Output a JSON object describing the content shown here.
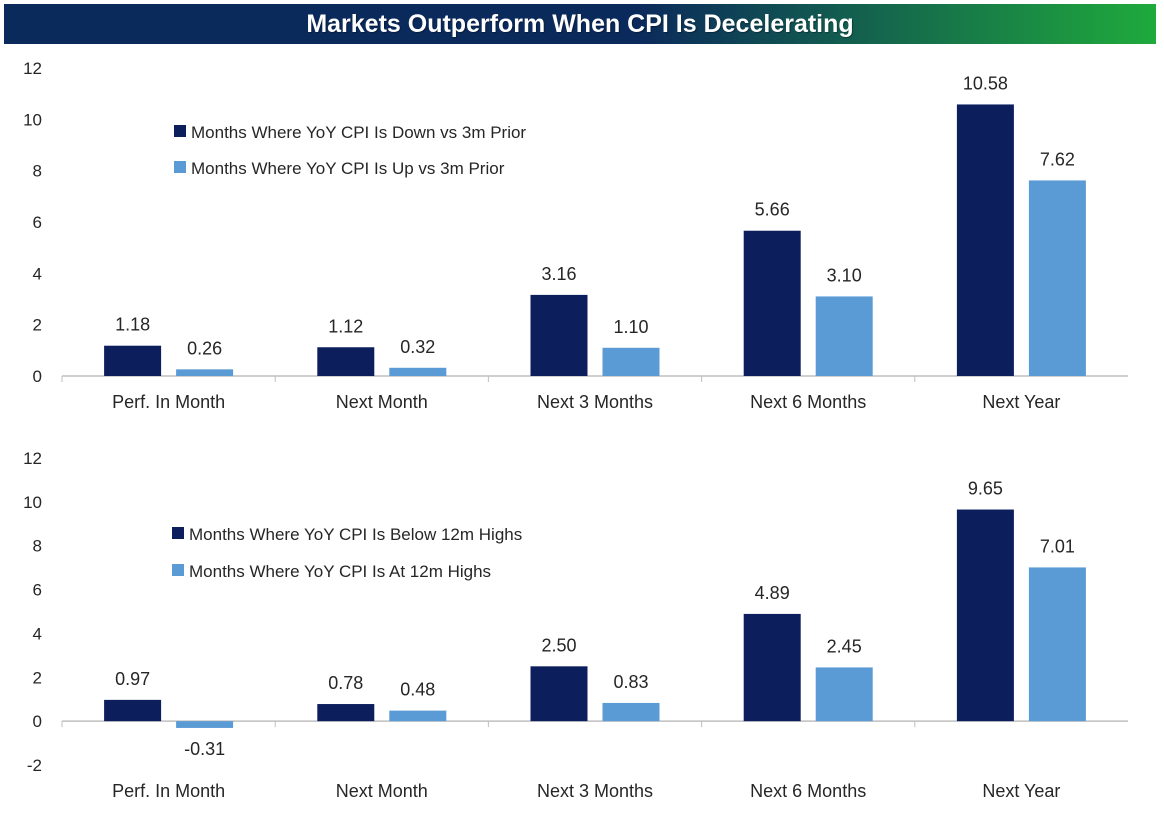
{
  "title": "Markets Outperform When CPI Is Decelerating",
  "colors": {
    "title_gradient_start": "#0b2a5c",
    "title_gradient_end": "#1faa3c",
    "series_dark": "#0c1f5c",
    "series_light": "#5b9bd5",
    "axis": "#bfbfbf",
    "text": "#262626"
  },
  "chart_data": [
    {
      "type": "bar",
      "categories": [
        "Perf. In Month",
        "Next Month",
        "Next 3 Months",
        "Next 6 Months",
        "Next Year"
      ],
      "series": [
        {
          "name": "Months Where YoY CPI Is Down vs 3m Prior",
          "values": [
            1.18,
            1.12,
            3.16,
            5.66,
            10.58
          ],
          "labels": [
            "1.18",
            "1.12",
            "3.16",
            "5.66",
            "10.58"
          ]
        },
        {
          "name": "Months Where YoY CPI Is Up vs 3m Prior",
          "values": [
            0.26,
            0.32,
            1.1,
            3.1,
            7.62
          ],
          "labels": [
            "0.26",
            "0.32",
            "1.10",
            "3.10",
            "7.62"
          ]
        }
      ],
      "ylim": [
        0,
        12
      ],
      "yticks": [
        "0",
        "2",
        "4",
        "6",
        "8",
        "10",
        "12"
      ],
      "legend": "upper-left",
      "grid": false
    },
    {
      "type": "bar",
      "categories": [
        "Perf. In Month",
        "Next Month",
        "Next 3 Months",
        "Next 6 Months",
        "Next Year"
      ],
      "series": [
        {
          "name": "Months Where YoY CPI Is Below 12m Highs",
          "values": [
            0.97,
            0.78,
            2.5,
            4.89,
            9.65
          ],
          "labels": [
            "0.97",
            "0.78",
            "2.50",
            "4.89",
            "9.65"
          ]
        },
        {
          "name": "Months Where YoY CPI Is At 12m Highs",
          "values": [
            -0.31,
            0.48,
            0.83,
            2.45,
            7.01
          ],
          "labels": [
            "-0.31",
            "0.48",
            "0.83",
            "2.45",
            "7.01"
          ]
        }
      ],
      "ylim": [
        -2,
        12
      ],
      "yticks": [
        "-2",
        "0",
        "2",
        "4",
        "6",
        "8",
        "10",
        "12"
      ],
      "legend": "upper-left",
      "grid": false
    }
  ]
}
